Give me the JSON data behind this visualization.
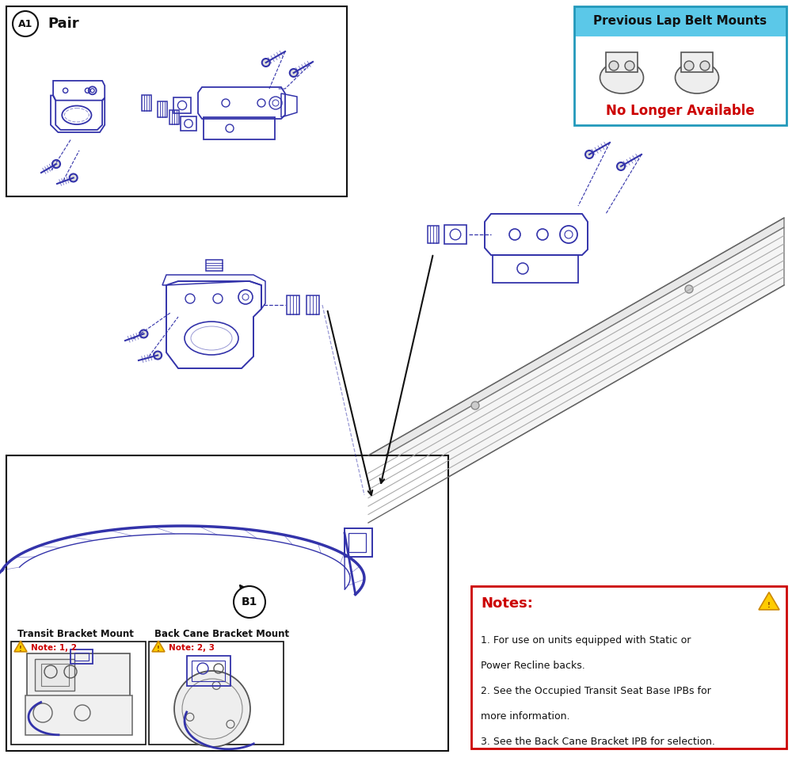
{
  "bg_color": "#ffffff",
  "line_color": "#3333aa",
  "dark_line": "#111111",
  "gray_line": "#888888",
  "cyan_box": "#5bc8e8",
  "red_text": "#cc0000",
  "warning_yellow": "#ffcc00",
  "warning_orange": "#cc8800",
  "a1_label": "A1",
  "a1_sub": "Pair",
  "b1_label": "B1",
  "prev_title": "Previous Lap Belt Mounts",
  "prev_subtitle": "No Longer Available",
  "transit_label": "Transit Bracket Mount",
  "back_cane_label": "Back Cane Bracket Mount",
  "note1": "Note: 1, 2",
  "note2": "Note: 2, 3",
  "notes_title": "Notes:",
  "note_lines": [
    "1. For use on units equipped with Static or",
    "Power Recline backs.",
    "2. See the Occupied Transit Seat Base IPBs for",
    "more information.",
    "3. See the Back Cane Bracket IPB for selection."
  ]
}
